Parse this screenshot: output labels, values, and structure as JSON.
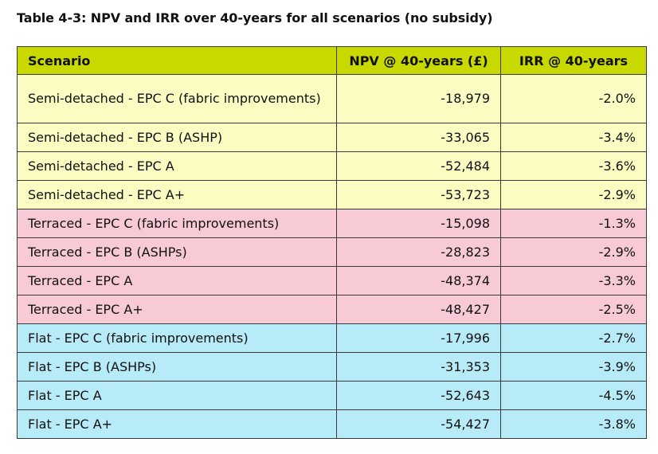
{
  "caption": "Table 4-3: NPV and IRR over 40-years for all scenarios (no subsidy)",
  "headers": {
    "scenario": "Scenario",
    "npv": "NPV @ 40-years (£)",
    "irr": "IRR @ 40-years"
  },
  "colors": {
    "header": "#c8d900",
    "semi_detached": "#fafcc2",
    "terraced": "#f7cad5",
    "flat": "#b7ebf8"
  },
  "rows": [
    {
      "scenario": "Semi-detached - EPC C (fabric improvements)",
      "npv": "-18,979",
      "irr": "-2.0%"
    },
    {
      "scenario": "Semi-detached - EPC B (ASHP)",
      "npv": "-33,065",
      "irr": "-3.4%"
    },
    {
      "scenario": "Semi-detached - EPC A",
      "npv": "-52,484",
      "irr": "-3.6%"
    },
    {
      "scenario": "Semi-detached - EPC A+",
      "npv": "-53,723",
      "irr": "-2.9%"
    },
    {
      "scenario": "Terraced - EPC C (fabric improvements)",
      "npv": "-15,098",
      "irr": "-1.3%"
    },
    {
      "scenario": "Terraced - EPC B (ASHPs)",
      "npv": "-28,823",
      "irr": "-2.9%"
    },
    {
      "scenario": "Terraced - EPC A",
      "npv": "-48,374",
      "irr": "-3.3%"
    },
    {
      "scenario": "Terraced - EPC A+",
      "npv": "-48,427",
      "irr": "-2.5%"
    },
    {
      "scenario": "Flat - EPC C (fabric improvements)",
      "npv": "-17,996",
      "irr": "-2.7%"
    },
    {
      "scenario": "Flat - EPC B (ASHPs)",
      "npv": "-31,353",
      "irr": "-3.9%"
    },
    {
      "scenario": "Flat - EPC A",
      "npv": "-52,643",
      "irr": "-4.5%"
    },
    {
      "scenario": "Flat - EPC A+",
      "npv": "-54,427",
      "irr": "-3.8%"
    }
  ]
}
